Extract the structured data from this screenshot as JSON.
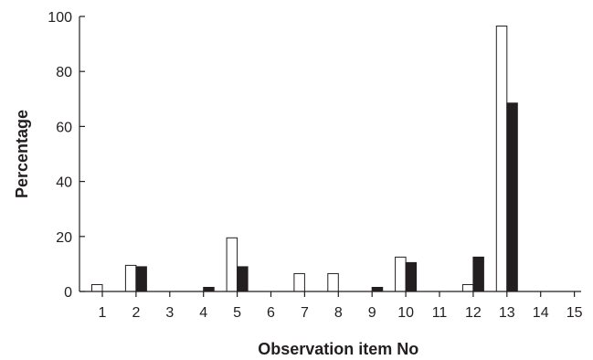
{
  "chart_data": {
    "type": "bar",
    "title": "",
    "xlabel": "Observation item No",
    "ylabel": "Percentage",
    "ylim": [
      0,
      100
    ],
    "yticks": [
      0,
      20,
      40,
      60,
      80,
      100
    ],
    "categories": [
      "1",
      "2",
      "3",
      "4",
      "5",
      "6",
      "7",
      "8",
      "9",
      "10",
      "11",
      "12",
      "13",
      "14",
      "15"
    ],
    "grid": false,
    "legend": "none",
    "series": [
      {
        "fill": "#ffffff",
        "stroke": "#231f20",
        "values": [
          2.5,
          9.5,
          0,
          0,
          19.5,
          0,
          6.5,
          6.5,
          0,
          12.5,
          0,
          2.5,
          96.5,
          0,
          0
        ]
      },
      {
        "fill": "#231f20",
        "stroke": "#231f20",
        "values": [
          0,
          9,
          0,
          1.5,
          9,
          0,
          0,
          0,
          1.5,
          10.5,
          0,
          12.5,
          68.5,
          0,
          0
        ]
      }
    ]
  }
}
